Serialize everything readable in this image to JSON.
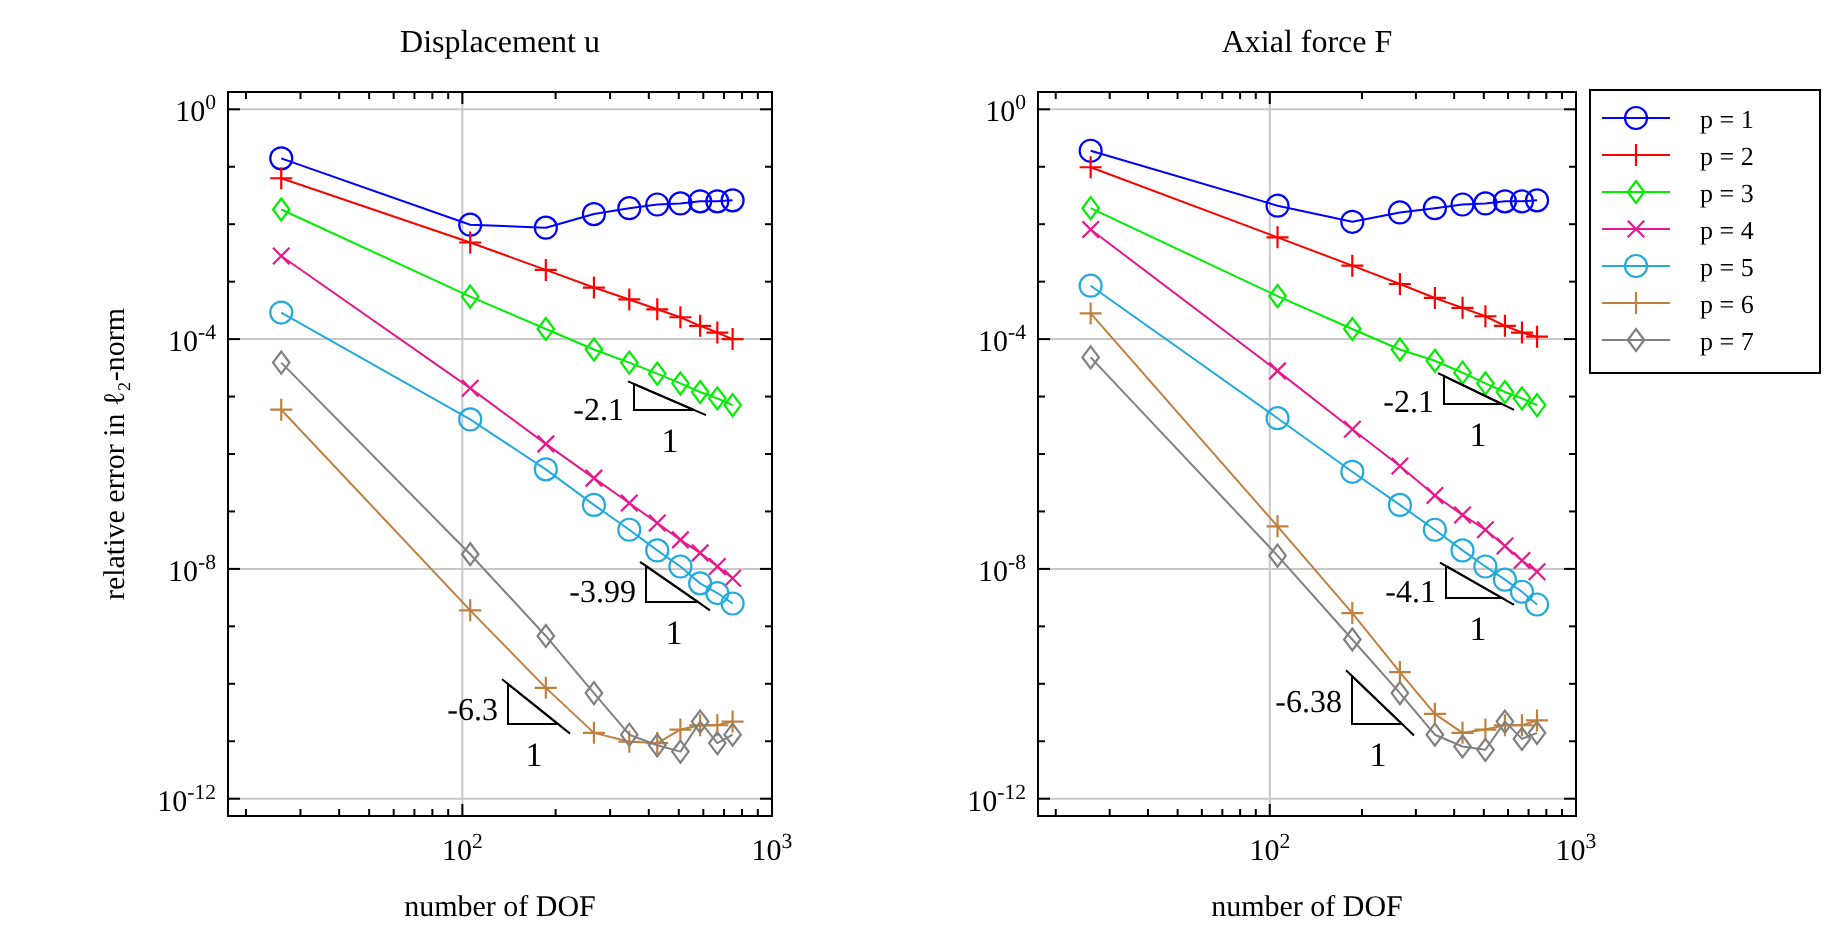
{
  "chart_data": [
    {
      "type": "line",
      "title": "Displacement u",
      "xlabel": "number of DOF",
      "ylabel": "relative error in ℓ₂-norm",
      "log": "xy",
      "grid": true,
      "x": [
        26,
        106,
        186,
        266,
        346,
        426,
        506,
        586,
        666,
        746
      ],
      "xlim": [
        17.5,
        1000
      ],
      "ylim": [
        5e-13,
        2
      ],
      "xticks": [
        {
          "value": 20,
          "label": null
        },
        {
          "value": 30,
          "label": null
        },
        {
          "value": 40,
          "label": null
        },
        {
          "value": 50,
          "label": null
        },
        {
          "value": 60,
          "label": null
        },
        {
          "value": 70,
          "label": null
        },
        {
          "value": 80,
          "label": null
        },
        {
          "value": 90,
          "label": null
        },
        {
          "value": 100,
          "label": "10$^{2}$"
        },
        {
          "value": 200,
          "label": null
        },
        {
          "value": 300,
          "label": null
        },
        {
          "value": 400,
          "label": null
        },
        {
          "value": 500,
          "label": null
        },
        {
          "value": 600,
          "label": null
        },
        {
          "value": 700,
          "label": null
        },
        {
          "value": 800,
          "label": null
        },
        {
          "value": 900,
          "label": null
        },
        {
          "value": 1000,
          "label": "10$^{3}$"
        }
      ],
      "yticks": [
        {
          "value": 1,
          "label": "10$^{0}$"
        },
        {
          "value": 0.1,
          "label": null
        },
        {
          "value": 0.01,
          "label": null
        },
        {
          "value": 0.001,
          "label": null
        },
        {
          "value": 0.0001,
          "label": "10$^{-4}$"
        },
        {
          "value": 1e-05,
          "label": null
        },
        {
          "value": 1e-06,
          "label": null
        },
        {
          "value": 1e-07,
          "label": null
        },
        {
          "value": 1e-08,
          "label": "10$^{-8}$"
        },
        {
          "value": 1e-09,
          "label": null
        },
        {
          "value": 1e-10,
          "label": null
        },
        {
          "value": 1e-11,
          "label": null
        },
        {
          "value": 1e-12,
          "label": "10$^{-12}$"
        }
      ],
      "series": [
        {
          "color": "#0000ff",
          "marker": "circle",
          "values": [
            0.14,
            0.0098,
            0.0087,
            0.015,
            0.019,
            0.022,
            0.023,
            0.025,
            0.025,
            0.026
          ]
        },
        {
          "color": "#ff0000",
          "marker": "plus",
          "values": [
            0.063,
            0.0048,
            0.0016,
            0.00079,
            0.00049,
            0.00033,
            0.00024,
            0.00017,
            0.00013,
            0.0001
          ]
        },
        {
          "color": "#00ee00",
          "marker": "diamond",
          "values": [
            0.018,
            0.00055,
            0.00015,
            6.6e-05,
            3.9e-05,
            2.5e-05,
            1.7e-05,
            1.2e-05,
            9.3e-06,
            7.1e-06
          ]
        },
        {
          "color": "#e6198c",
          "marker": "cross",
          "values": [
            0.0028,
            1.4e-05,
            1.5e-06,
            3.8e-07,
            1.4e-07,
            6.3e-08,
            3.2e-08,
            1.9e-08,
            1.1e-08,
            6.9e-09
          ]
        },
        {
          "color": "#22aadd",
          "marker": "circle",
          "values": [
            0.00029,
            4e-06,
            5.4e-07,
            1.3e-07,
            4.8e-08,
            2.1e-08,
            1.1e-08,
            5.6e-09,
            3.8e-09,
            2.5e-09
          ]
        },
        {
          "color": "#bf8040",
          "marker": "plus",
          "values": [
            5.9e-06,
            1.9e-09,
            8.5e-11,
            1.4e-11,
            9.8e-12,
            9.3e-12,
            1.6e-11,
            1.9e-11,
            1.9e-11,
            2.2e-11
          ]
        },
        {
          "color": "#808080",
          "marker": "diamond",
          "values": [
            3.9e-05,
            1.8e-08,
            6.8e-10,
            6.9e-11,
            1.3e-11,
            8.5e-12,
            6.6e-12,
            2.2e-11,
            9.3e-12,
            1.3e-11
          ]
        }
      ],
      "annotations": [
        "-2.1",
        "1",
        "-3.99",
        "1",
        "-6.3",
        "1"
      ]
    },
    {
      "type": "line",
      "title": "Axial force F",
      "xlabel": "number of DOF",
      "log": "xy",
      "grid": true,
      "legend": "right",
      "x": [
        26,
        106,
        186,
        266,
        346,
        426,
        506,
        586,
        666,
        746
      ],
      "xlim": [
        17.5,
        1000
      ],
      "ylim": [
        5e-13,
        2
      ],
      "xticks": [
        {
          "value": 20,
          "label": null
        },
        {
          "value": 30,
          "label": null
        },
        {
          "value": 40,
          "label": null
        },
        {
          "value": 50,
          "label": null
        },
        {
          "value": 60,
          "label": null
        },
        {
          "value": 70,
          "label": null
        },
        {
          "value": 80,
          "label": null
        },
        {
          "value": 90,
          "label": null
        },
        {
          "value": 100,
          "label": "10$^{2}$"
        },
        {
          "value": 200,
          "label": null
        },
        {
          "value": 300,
          "label": null
        },
        {
          "value": 400,
          "label": null
        },
        {
          "value": 500,
          "label": null
        },
        {
          "value": 600,
          "label": null
        },
        {
          "value": 700,
          "label": null
        },
        {
          "value": 800,
          "label": null
        },
        {
          "value": 900,
          "label": null
        },
        {
          "value": 1000,
          "label": "10$^{3}$"
        }
      ],
      "yticks": [
        {
          "value": 1,
          "label": "10$^{0}$"
        },
        {
          "value": 0.1,
          "label": null
        },
        {
          "value": 0.01,
          "label": null
        },
        {
          "value": 0.001,
          "label": null
        },
        {
          "value": 0.0001,
          "label": "10$^{-4}$"
        },
        {
          "value": 1e-05,
          "label": null
        },
        {
          "value": 1e-06,
          "label": null
        },
        {
          "value": 1e-07,
          "label": null
        },
        {
          "value": 1e-08,
          "label": "10$^{-8}$"
        },
        {
          "value": 1e-09,
          "label": null
        },
        {
          "value": 1e-10,
          "label": null
        },
        {
          "value": 1e-11,
          "label": null
        },
        {
          "value": 1e-12,
          "label": "10$^{-12}$"
        }
      ],
      "series": [
        {
          "name": "p = 1",
          "color": "#0000ff",
          "marker": "circle",
          "values": [
            0.19,
            0.021,
            0.011,
            0.016,
            0.019,
            0.022,
            0.023,
            0.025,
            0.025,
            0.026
          ]
        },
        {
          "name": "p = 2",
          "color": "#ff0000",
          "marker": "plus",
          "values": [
            0.098,
            0.0059,
            0.0019,
            0.00091,
            0.00052,
            0.00035,
            0.00025,
            0.00017,
            0.00013,
            0.00011
          ]
        },
        {
          "name": "p = 3",
          "color": "#00ee00",
          "marker": "diamond",
          "values": [
            0.019,
            0.00056,
            0.00015,
            6.6e-05,
            4.2e-05,
            2.6e-05,
            1.7e-05,
            1.2e-05,
            9.3e-06,
            7.1e-06
          ]
        },
        {
          "name": "p = 4",
          "color": "#e6198c",
          "marker": "cross",
          "values": [
            0.0081,
            2.8e-05,
            2.7e-06,
            6.2e-07,
            1.9e-07,
            8.7e-08,
            4.8e-08,
            2.5e-08,
            1.4e-08,
            8.9e-09
          ]
        },
        {
          "name": "p = 5",
          "color": "#22aadd",
          "marker": "circle",
          "values": [
            0.00085,
            4.2e-06,
            4.9e-07,
            1.3e-07,
            4.8e-08,
            2.1e-08,
            1.1e-08,
            6.5e-09,
            4e-09,
            2.4e-09
          ]
        },
        {
          "name": "p = 6",
          "color": "#bf8040",
          "marker": "plus",
          "values": [
            0.00028,
            5.5e-08,
            1.7e-09,
            1.6e-10,
            3e-11,
            1.4e-11,
            1.6e-11,
            1.9e-11,
            1.9e-11,
            2.3e-11
          ]
        },
        {
          "name": "p = 7",
          "color": "#808080",
          "marker": "diamond",
          "values": [
            4.8e-05,
            1.7e-08,
            5.9e-10,
            6.9e-11,
            1.3e-11,
            8.1e-12,
            7.1e-12,
            2.2e-11,
            1.1e-11,
            1.4e-11
          ]
        }
      ],
      "annotations": [
        "-2.1",
        "1",
        "-4.1",
        "1",
        "-6.38",
        "1"
      ]
    }
  ]
}
